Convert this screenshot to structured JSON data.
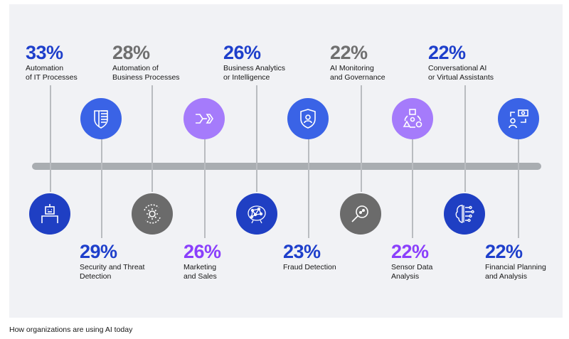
{
  "colors": {
    "blue": "#1e3fcb",
    "gray": "#6f6f6f",
    "purple": "#8a3ffc",
    "blue_icon": "#3a63e6",
    "dark_blue_icon": "#1f3fc3",
    "gray_icon": "#6b6b6b",
    "purple_icon": "#a57bfb"
  },
  "top_items": [
    {
      "percent": "33%",
      "label": "Automation\nof IT Processes",
      "color": "blue"
    },
    {
      "percent": "28%",
      "label": "Automation of\nBusiness Processes",
      "color": "gray"
    },
    {
      "percent": "26%",
      "label": "Business Analytics\nor Intelligence",
      "color": "blue"
    },
    {
      "percent": "22%",
      "label": "AI Monitoring\nand Governance",
      "color": "gray"
    },
    {
      "percent": "22%",
      "label": "Conversational AI\nor Virtual Assistants",
      "color": "blue"
    }
  ],
  "bottom_items": [
    {
      "percent": "29%",
      "label": "Security and Threat\nDetection",
      "color": "blue"
    },
    {
      "percent": "26%",
      "label": "Marketing\nand Sales",
      "color": "purple"
    },
    {
      "percent": "23%",
      "label": "Fraud Detection",
      "color": "blue"
    },
    {
      "percent": "22%",
      "label": "Sensor Data\nAnalysis",
      "color": "purple"
    },
    {
      "percent": "22%",
      "label": "Financial Planning\nand Analysis",
      "color": "blue"
    }
  ],
  "icons_top": [
    "shield-stripes-icon",
    "arrows-flow-icon",
    "shield-user-icon",
    "shapes-cycle-icon",
    "money-exchange-icon"
  ],
  "icons_bottom": [
    "robot-icon",
    "gear-cycle-icon",
    "neural-network-icon",
    "magnifier-icon",
    "brain-circuit-icon"
  ],
  "caption": "How organizations are using AI today"
}
